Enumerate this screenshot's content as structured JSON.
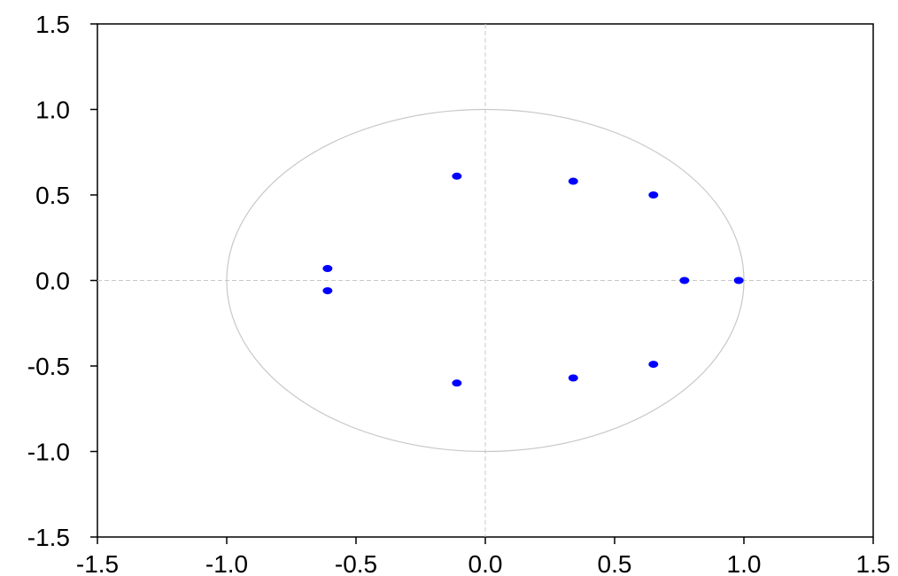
{
  "chart_data": {
    "type": "scatter",
    "title": "",
    "xlabel": "",
    "ylabel": "",
    "xlim": [
      -1.5,
      1.5
    ],
    "ylim": [
      -1.5,
      1.5
    ],
    "x_ticks": [
      -1.5,
      -1.0,
      -0.5,
      0.0,
      0.5,
      1.0,
      1.5
    ],
    "y_ticks": [
      -1.5,
      -1.0,
      -0.5,
      0.0,
      0.5,
      1.0,
      1.5
    ],
    "x_tick_labels": [
      "-1.5",
      "-1.0",
      "-0.5",
      "0.0",
      "0.5",
      "1.0",
      "1.5"
    ],
    "y_tick_labels": [
      "-1.5",
      "-1.0",
      "-0.5",
      "0.0",
      "0.5",
      "1.0",
      "1.5"
    ],
    "unit_circle": true,
    "zero_lines": true,
    "grid": false,
    "point_color": "#0000ff",
    "circle_color": "#c8c8c8",
    "zero_line_color": "#c8c8c8",
    "points": [
      {
        "x": 0.98,
        "y": 0.0
      },
      {
        "x": 0.77,
        "y": 0.0
      },
      {
        "x": 0.65,
        "y": 0.5
      },
      {
        "x": 0.65,
        "y": -0.49
      },
      {
        "x": 0.34,
        "y": 0.58
      },
      {
        "x": 0.34,
        "y": -0.57
      },
      {
        "x": -0.11,
        "y": 0.61
      },
      {
        "x": -0.11,
        "y": -0.6
      },
      {
        "x": -0.61,
        "y": 0.07
      },
      {
        "x": -0.61,
        "y": -0.06
      }
    ]
  }
}
